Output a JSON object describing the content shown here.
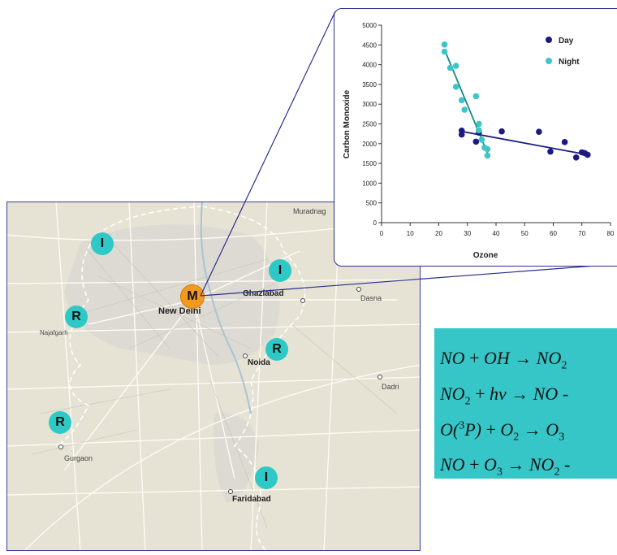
{
  "map": {
    "places": {
      "muradnagar": "Muradnag",
      "new_delhi": "New Delhi",
      "ghaziabad": "Ghaziabad",
      "dasna": "Dasna",
      "najafgarh": "Najafgarh",
      "noida": "Noida",
      "dadri": "Dadri",
      "gurgaon": "Gurgaon",
      "faridabad": "Faridabad"
    },
    "markers": {
      "m_main": "M",
      "i_northwest": "I",
      "i_ghaziabad": "I",
      "i_faridabad": "I",
      "r_west": "R",
      "r_noida": "R",
      "r_gurgaon": "R"
    },
    "colors": {
      "teal_marker": "#2ec9c6",
      "orange_marker": "#f39a1e",
      "map_bg": "#e6e2d4"
    }
  },
  "chart_data": {
    "type": "scatter",
    "xlabel": "Ozone",
    "ylabel": "Carbon Monoxide",
    "xlim": [
      0,
      80
    ],
    "ylim": [
      0,
      5000
    ],
    "xticks": [
      0,
      10,
      20,
      30,
      40,
      50,
      60,
      70,
      80
    ],
    "yticks": [
      0,
      500,
      1000,
      1500,
      2000,
      2500,
      3000,
      3500,
      4000,
      4500,
      5000
    ],
    "legend_position": "top-right",
    "grid": false,
    "series": [
      {
        "name": "Day",
        "color": "#1a1a80",
        "points": [
          [
            28,
            2330
          ],
          [
            28,
            2230
          ],
          [
            33,
            2050
          ],
          [
            34,
            2280
          ],
          [
            42,
            2310
          ],
          [
            55,
            2300
          ],
          [
            59,
            1800
          ],
          [
            64,
            2040
          ],
          [
            68,
            1650
          ],
          [
            70,
            1780
          ],
          [
            71,
            1760
          ],
          [
            72,
            1720
          ]
        ],
        "trend": [
          [
            28,
            2310
          ],
          [
            72,
            1720
          ]
        ]
      },
      {
        "name": "Night",
        "color": "#3cc6c8",
        "points": [
          [
            22,
            4510
          ],
          [
            22,
            4330
          ],
          [
            24,
            3920
          ],
          [
            26,
            3970
          ],
          [
            26,
            3440
          ],
          [
            28,
            3100
          ],
          [
            29,
            2860
          ],
          [
            33,
            3200
          ],
          [
            34,
            2500
          ],
          [
            34,
            2340
          ],
          [
            35,
            2100
          ],
          [
            36,
            1900
          ],
          [
            37,
            1860
          ],
          [
            37,
            1700
          ]
        ],
        "trend": [
          [
            22,
            4380
          ],
          [
            37,
            1760
          ]
        ]
      }
    ]
  },
  "equations": [
    {
      "lhs1": "NO",
      "op1": "+",
      "lhs2": "OH",
      "arrow": "→",
      "rhs": "NO",
      "rhs_sub": "2"
    },
    {
      "lhs1": "NO",
      "lhs1_sub": "2",
      "op1": "+",
      "lhs2": "hv",
      "arrow": "→",
      "rhs": "NO",
      "rhs_tail": " -"
    },
    {
      "lhs1_pre": "O(",
      "lhs1_sup": "3",
      "lhs1_post": "P)",
      "op1": "+",
      "lhs2": "O",
      "lhs2_sub": "2",
      "arrow": "→",
      "rhs": "O",
      "rhs_sub": "3"
    },
    {
      "lhs1": "NO",
      "op1": "+",
      "lhs2": "O",
      "lhs2_sub": "3",
      "arrow": "→",
      "rhs": "NO",
      "rhs_sub": "2",
      "rhs_tail": " -"
    }
  ]
}
